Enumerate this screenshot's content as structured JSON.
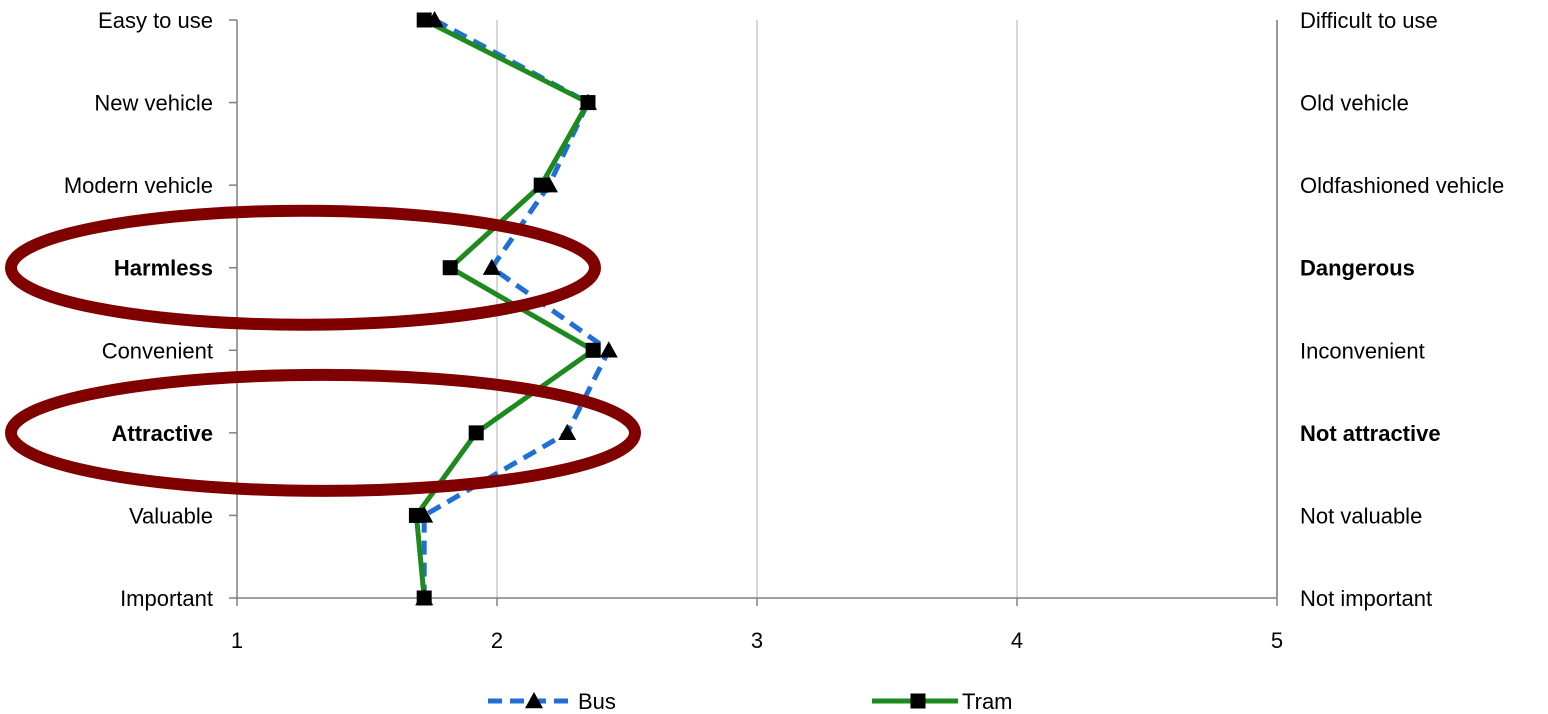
{
  "chart_data": {
    "type": "line",
    "orientation": "horizontal-profile",
    "x_range": [
      1,
      5
    ],
    "x_ticks": [
      "1",
      "2",
      "3",
      "4",
      "5"
    ],
    "grid": "vertical",
    "legend_position": "bottom",
    "rows": [
      {
        "left": "Easy to use",
        "right": "Difficult to use",
        "bold": false
      },
      {
        "left": "New vehicle",
        "right": "Old vehicle",
        "bold": false
      },
      {
        "left": "Modern vehicle",
        "right": "Oldfashioned vehicle",
        "bold": false
      },
      {
        "left": "Harmless",
        "right": "Dangerous",
        "bold": true
      },
      {
        "left": "Convenient",
        "right": "Inconvenient",
        "bold": false
      },
      {
        "left": "Attractive",
        "right": "Not attractive",
        "bold": true
      },
      {
        "left": "Valuable",
        "right": "Not valuable",
        "bold": false
      },
      {
        "left": "Important",
        "right": "Not important",
        "bold": false
      }
    ],
    "series": [
      {
        "name": "Bus",
        "color": "#1f6fd6",
        "dash": "dashed",
        "marker": "triangle",
        "values": [
          1.76,
          2.35,
          2.2,
          1.98,
          2.43,
          2.27,
          1.72,
          1.72
        ]
      },
      {
        "name": "Tram",
        "color": "#1e8a1e",
        "dash": "solid",
        "marker": "square",
        "values": [
          1.72,
          2.35,
          2.17,
          1.82,
          2.37,
          1.92,
          1.69,
          1.72
        ]
      }
    ],
    "highlight_color": "#800000",
    "highlighted_rows": [
      3,
      5
    ]
  }
}
